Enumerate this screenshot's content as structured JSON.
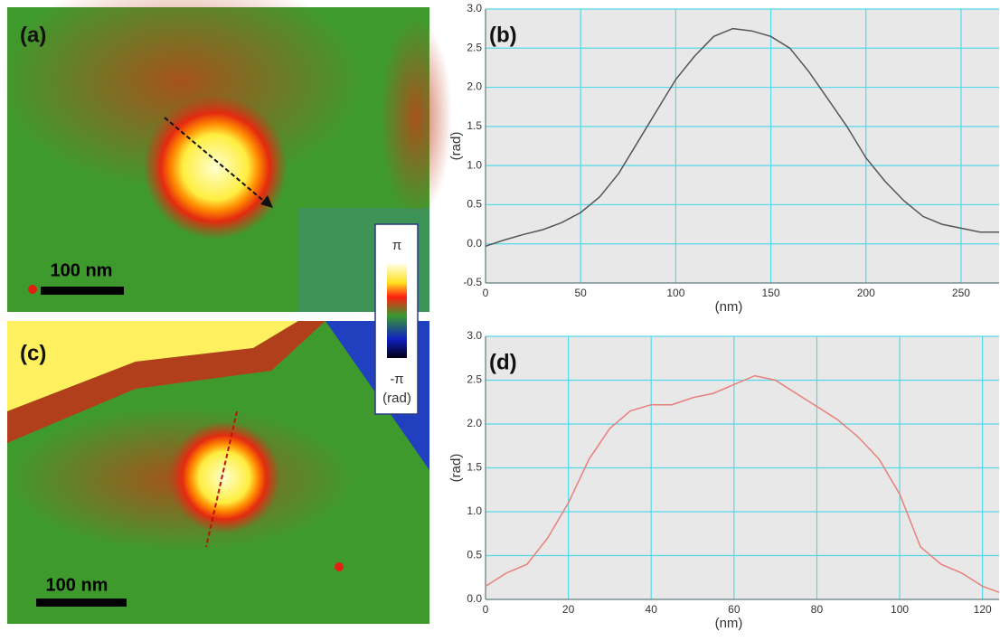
{
  "images": [
    {
      "label": "(a)",
      "scale_bar": "100 nm"
    },
    {
      "label": "(c)",
      "scale_bar": "100 nm"
    }
  ],
  "colorbar": {
    "top": "π",
    "bottom": "-π",
    "unit": "(rad)"
  },
  "chart_data": [
    {
      "type": "line",
      "label": "(b)",
      "x_label": "(nm)",
      "y_label": "(rad)",
      "color": "#555555",
      "grid": true,
      "x": [
        0,
        10,
        20,
        30,
        40,
        50,
        60,
        70,
        80,
        90,
        100,
        110,
        120,
        130,
        140,
        150,
        160,
        170,
        180,
        190,
        200,
        210,
        220,
        230,
        240,
        250,
        260,
        270
      ],
      "values": [
        -0.03,
        0.05,
        0.12,
        0.18,
        0.27,
        0.4,
        0.6,
        0.9,
        1.3,
        1.7,
        2.1,
        2.4,
        2.65,
        2.75,
        2.72,
        2.65,
        2.5,
        2.2,
        1.85,
        1.5,
        1.1,
        0.8,
        0.55,
        0.35,
        0.25,
        0.2,
        0.15,
        0.15
      ],
      "xlim": [
        0,
        270
      ],
      "ylim": [
        -0.5,
        3.0
      ],
      "xticks": [
        0,
        50,
        100,
        150,
        200,
        250
      ],
      "yticks": [
        -0.5,
        {
          "value": 0,
          "label": "0.0"
        },
        0.5,
        {
          "value": 1,
          "label": "1.0"
        },
        1.5,
        {
          "value": 2,
          "label": "2.0"
        },
        2.5,
        {
          "value": 3,
          "label": "3.0"
        }
      ]
    },
    {
      "type": "line",
      "label": "(d)",
      "x_label": "(nm)",
      "y_label": "(rad)",
      "color": "#e8807a",
      "grid": true,
      "x": [
        0,
        5,
        10,
        15,
        20,
        25,
        30,
        35,
        40,
        45,
        50,
        55,
        60,
        65,
        70,
        75,
        80,
        85,
        90,
        95,
        100,
        105,
        110,
        115,
        120,
        124
      ],
      "values": [
        0.15,
        0.3,
        0.4,
        0.7,
        1.1,
        1.6,
        1.95,
        2.15,
        2.22,
        2.22,
        2.3,
        2.35,
        2.45,
        2.55,
        2.5,
        2.35,
        2.2,
        2.05,
        1.85,
        1.6,
        1.2,
        0.6,
        0.4,
        0.3,
        0.15,
        0.08
      ],
      "xlim": [
        0,
        124
      ],
      "ylim": [
        0,
        3.0
      ],
      "xticks": [
        0,
        20,
        40,
        60,
        80,
        100,
        120
      ],
      "yticks": [
        {
          "value": 0,
          "label": "0.0"
        },
        0.5,
        {
          "value": 1,
          "label": "1.0"
        },
        1.5,
        {
          "value": 2,
          "label": "2.0"
        },
        2.5,
        {
          "value": 3,
          "label": "3.0"
        }
      ]
    }
  ]
}
